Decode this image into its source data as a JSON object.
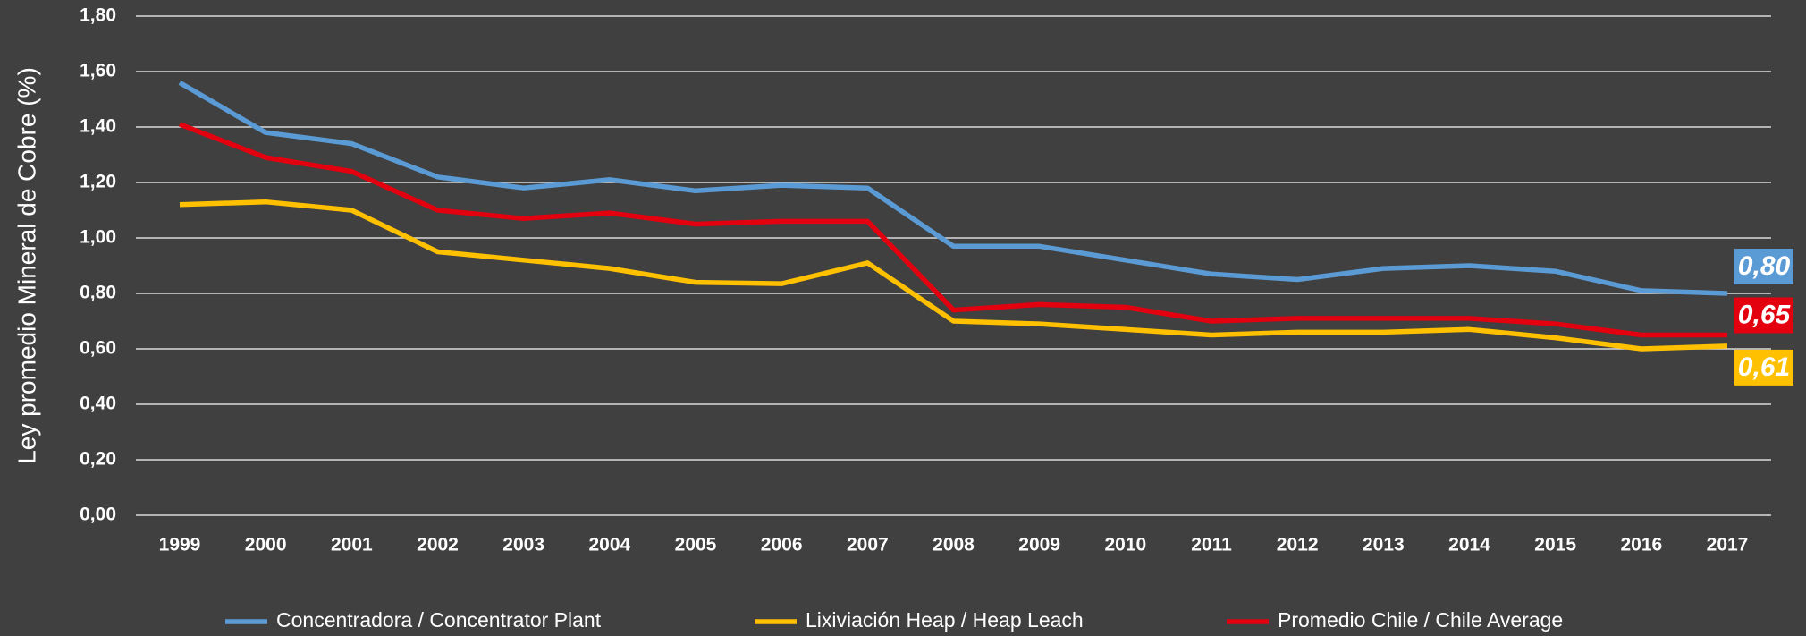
{
  "chart_data": {
    "type": "line",
    "y_label": "Ley promedio Mineral de Cobre (%)",
    "categories": [
      "1999",
      "2000",
      "2001",
      "2002",
      "2003",
      "2004",
      "2005",
      "2006",
      "2007",
      "2008",
      "2009",
      "2010",
      "2011",
      "2012",
      "2013",
      "2014",
      "2015",
      "2016",
      "2017"
    ],
    "series": [
      {
        "name": "Concentradora / Concentrator Plant",
        "color": "#5b9bd5",
        "values": [
          1.56,
          1.38,
          1.34,
          1.22,
          1.18,
          1.21,
          1.17,
          1.19,
          1.18,
          0.97,
          0.97,
          0.92,
          0.87,
          0.85,
          0.89,
          0.9,
          0.88,
          0.81,
          0.8
        ],
        "value_labels": [
          null,
          null,
          null,
          null,
          null,
          null,
          null,
          null,
          null,
          null,
          null,
          null,
          null,
          null,
          null,
          null,
          null,
          null,
          "0,80"
        ]
      },
      {
        "name": "Lixiviación Heap / Heap Leach",
        "color": "#ffc000",
        "values": [
          1.12,
          1.13,
          1.1,
          0.95,
          0.92,
          0.89,
          0.84,
          0.835,
          0.91,
          0.7,
          0.69,
          0.67,
          0.65,
          0.66,
          0.66,
          0.67,
          0.64,
          0.6,
          0.61
        ],
        "value_labels": [
          null,
          null,
          null,
          null,
          null,
          null,
          null,
          null,
          null,
          null,
          null,
          null,
          null,
          null,
          null,
          null,
          null,
          null,
          "0,61"
        ]
      },
      {
        "name": "Promedio Chile / Chile Average",
        "color": "#e3000f",
        "values": [
          1.41,
          1.29,
          1.24,
          1.1,
          1.07,
          1.09,
          1.05,
          1.06,
          1.06,
          0.74,
          0.76,
          0.75,
          0.7,
          0.71,
          0.71,
          0.71,
          0.69,
          0.65,
          0.65
        ],
        "value_labels": [
          null,
          null,
          null,
          null,
          null,
          null,
          null,
          null,
          null,
          null,
          null,
          null,
          null,
          null,
          null,
          null,
          null,
          null,
          "0,65"
        ]
      }
    ],
    "ylim": [
      0,
      1.8
    ],
    "yticks": [
      {
        "value": 0,
        "label": "0,00"
      },
      {
        "value": 0.2,
        "label": "0,20"
      },
      {
        "value": 0.4,
        "label": "0,40"
      },
      {
        "value": 0.6,
        "label": "0,60"
      },
      {
        "value": 0.8,
        "label": "0,80"
      },
      {
        "value": 1.0,
        "label": "1,00"
      },
      {
        "value": 1.2,
        "label": "1,20"
      },
      {
        "value": 1.4,
        "label": "1,40"
      },
      {
        "value": 1.6,
        "label": "1,60"
      },
      {
        "value": 1.8,
        "label": "1,80"
      }
    ],
    "grid": true,
    "legend": "bottom"
  }
}
